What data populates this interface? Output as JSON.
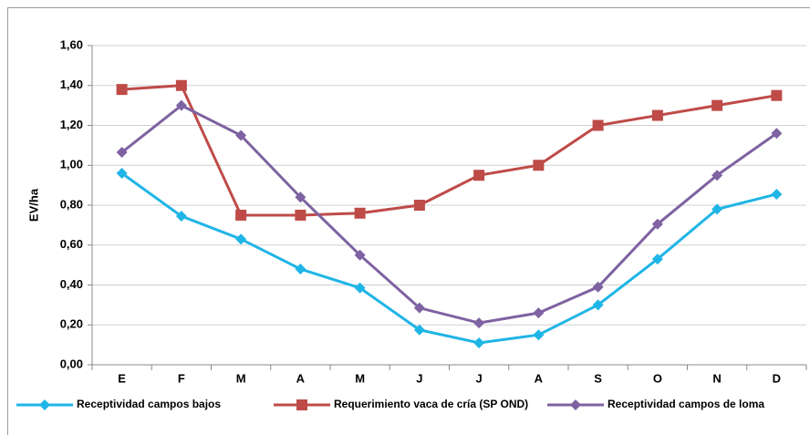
{
  "chart_data": {
    "type": "line",
    "y_label": "EV/ha",
    "categories": [
      "E",
      "F",
      "M",
      "A",
      "M",
      "J",
      "J",
      "A",
      "S",
      "O",
      "N",
      "D"
    ],
    "series": [
      {
        "name": "Receptividad campos bajos",
        "color": "#1fb5e6",
        "marker": "diamond",
        "values": [
          0.96,
          0.745,
          0.63,
          0.48,
          0.385,
          0.175,
          0.11,
          0.15,
          0.3,
          0.53,
          0.78,
          0.855
        ]
      },
      {
        "name": "Requerimiento vaca de cría (SP OND)",
        "color": "#be4b48",
        "marker": "square",
        "values": [
          1.38,
          1.4,
          0.75,
          0.75,
          0.76,
          0.8,
          0.95,
          1.0,
          1.2,
          1.25,
          1.3,
          1.35
        ]
      },
      {
        "name": "Receptividad campos de loma",
        "color": "#7e62a1",
        "marker": "diamond",
        "values": [
          1.065,
          1.3,
          1.15,
          0.84,
          0.55,
          0.285,
          0.21,
          0.26,
          0.39,
          0.705,
          0.95,
          1.16
        ]
      }
    ],
    "ylim": [
      0,
      1.6
    ],
    "yticks": [
      {
        "value": 0,
        "label": "0,00"
      },
      {
        "value": 0.2,
        "label": "0,20"
      },
      {
        "value": 0.4,
        "label": "0,40"
      },
      {
        "value": 0.6,
        "label": "0,60"
      },
      {
        "value": 0.8,
        "label": "0,80"
      },
      {
        "value": 1.0,
        "label": "1,00"
      },
      {
        "value": 1.2,
        "label": "1,20"
      },
      {
        "value": 1.4,
        "label": "1,40"
      },
      {
        "value": 1.6,
        "label": "1,60"
      }
    ],
    "grid": true,
    "legend": "bottom"
  }
}
